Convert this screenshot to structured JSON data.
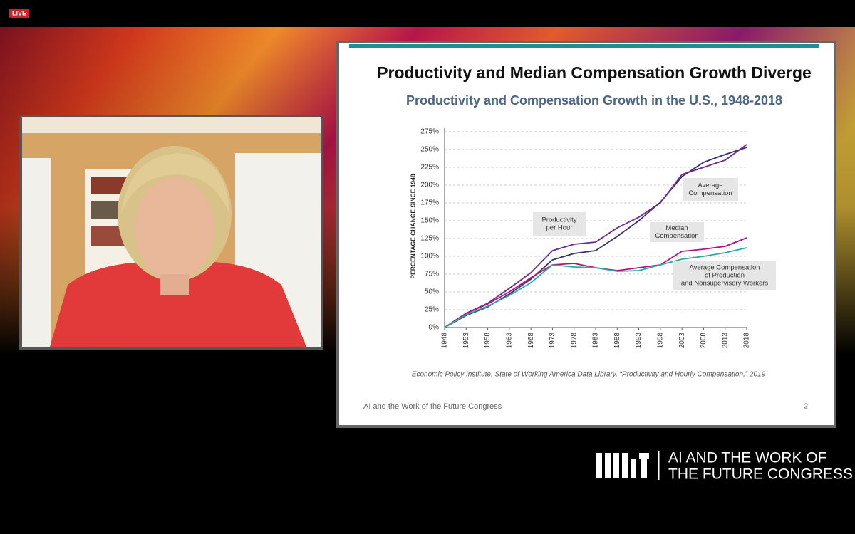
{
  "live_badge": "LIVE",
  "slide": {
    "title": "Productivity and Median Compensation Growth Diverge",
    "source": "Economic Policy Institute, State of Working America Data Library, “Productivity and Hourly Compensation,” 2019",
    "footer": "AI and the Work of the Future Congress",
    "page_number": 2
  },
  "branding": {
    "lines": [
      "AI AND THE WORK OF",
      "THE FUTURE CONGRESS"
    ]
  },
  "chart_data": {
    "type": "line",
    "title": "Productivity and Compensation Growth in the U.S., 1948-2018",
    "y_label": "PERCENTAGE CHANGE SINCE 1948",
    "x": [
      1948,
      1953,
      1958,
      1963,
      1968,
      1973,
      1978,
      1983,
      1988,
      1993,
      1998,
      2003,
      2008,
      2013,
      2018
    ],
    "xlim": [
      1948,
      2018
    ],
    "xticks": [
      1948,
      1953,
      1958,
      1963,
      1968,
      1973,
      1978,
      1983,
      1988,
      1993,
      1998,
      2003,
      2008,
      2013,
      2018
    ],
    "ylim": [
      0,
      275
    ],
    "yticks": [
      {
        "value": 0,
        "label": "0%"
      },
      {
        "value": 25,
        "label": "25%"
      },
      {
        "value": 50,
        "label": "50%"
      },
      {
        "value": 75,
        "label": "75%"
      },
      {
        "value": 100,
        "label": "100%"
      },
      {
        "value": 125,
        "label": "125%"
      },
      {
        "value": 150,
        "label": "150%"
      },
      {
        "value": 175,
        "label": "175%"
      },
      {
        "value": 200,
        "label": "200%"
      },
      {
        "value": 225,
        "label": "225%"
      },
      {
        "value": 250,
        "label": "250%"
      },
      {
        "value": 275,
        "label": "275%"
      }
    ],
    "grid": true,
    "series": [
      {
        "color": "#3b2f72",
        "values": [
          0,
          17,
          29,
          47,
          68,
          95,
          104,
          108,
          128,
          150,
          176,
          212,
          232,
          243,
          253
        ]
      },
      {
        "color": "#6b2a8a",
        "values": [
          0,
          20,
          34,
          55,
          77,
          108,
          117,
          120,
          140,
          155,
          175,
          215,
          225,
          235,
          257
        ]
      },
      {
        "color": "#b3137c",
        "values": [
          0,
          20,
          33,
          50,
          70,
          88,
          90,
          84,
          80,
          84,
          88,
          107,
          110,
          114,
          126
        ]
      },
      {
        "color": "#2aa7a9",
        "values": [
          0,
          18,
          30,
          45,
          63,
          88,
          85,
          84,
          79,
          80,
          88,
          96,
          100,
          105,
          112
        ]
      }
    ],
    "annotations": [
      {
        "lines": [
          "Productivity",
          "per Hour"
        ]
      },
      {
        "lines": [
          "Average",
          "Compensation"
        ]
      },
      {
        "lines": [
          "Median",
          "Compensation"
        ]
      },
      {
        "lines": [
          "Average Compensation",
          "of Production",
          "and Nonsupervisory Workers"
        ]
      }
    ]
  }
}
